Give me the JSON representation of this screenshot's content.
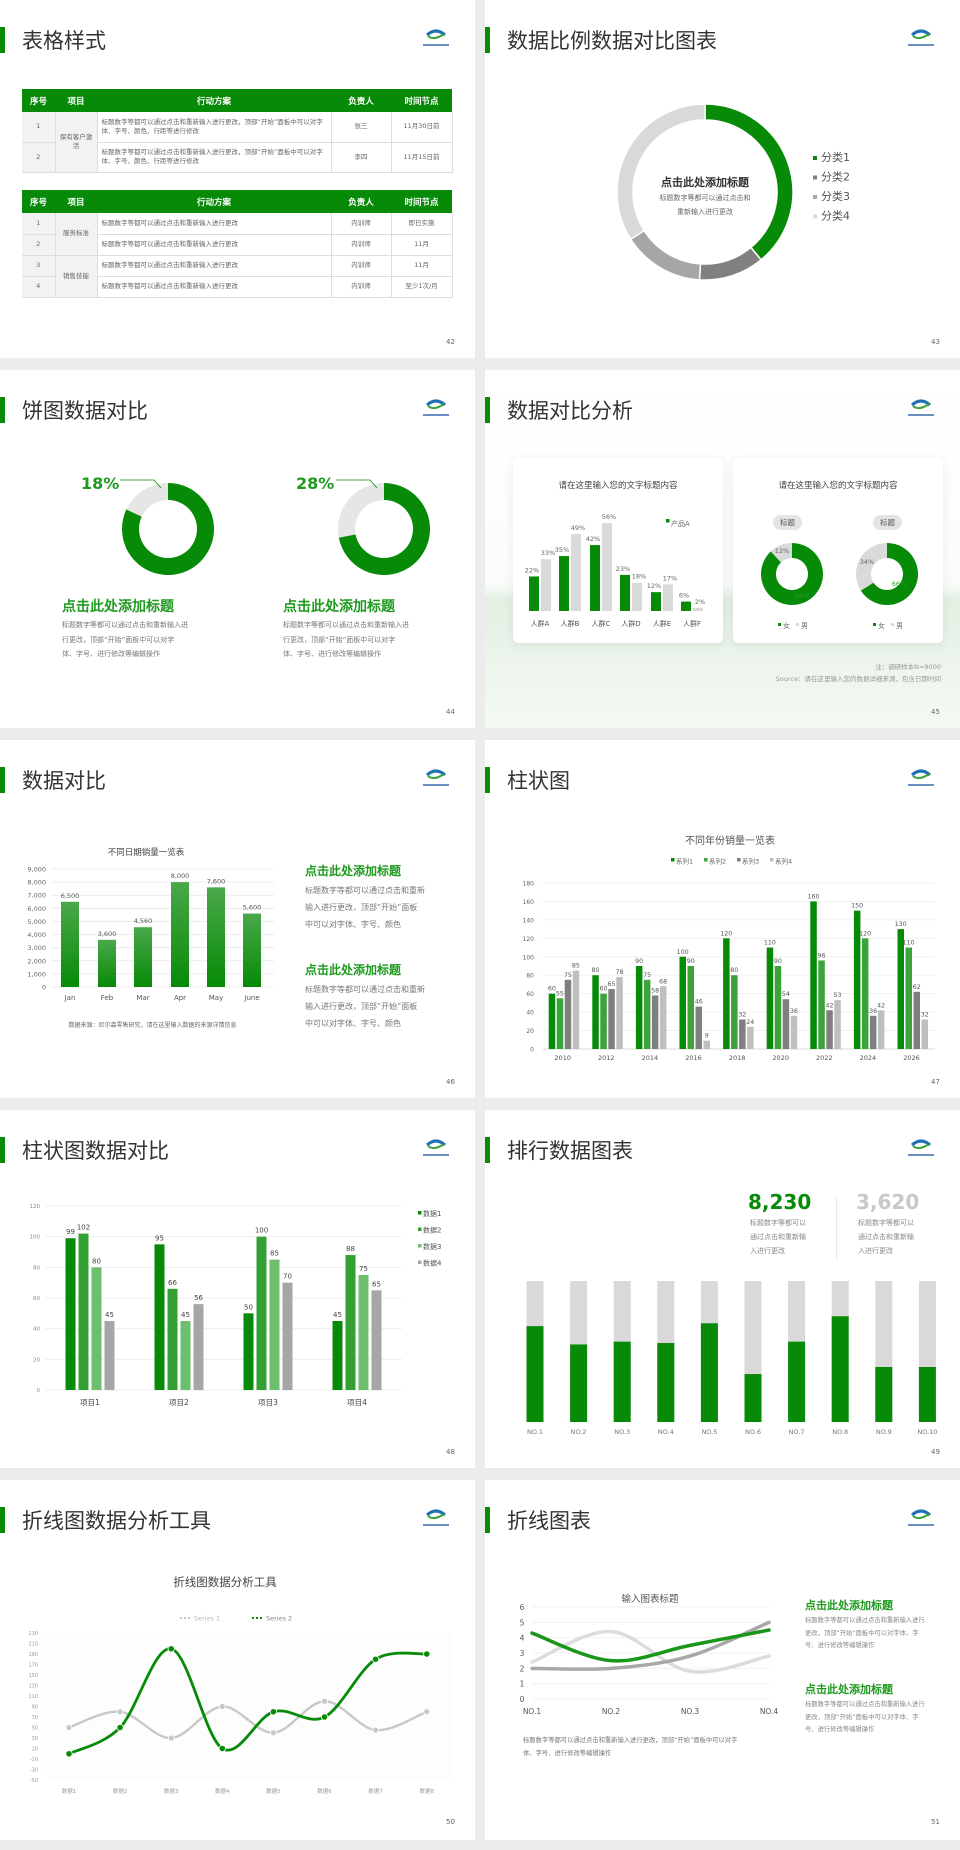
{
  "brand": {
    "green": "#078a07",
    "logo_icon": "eye-swoosh-logo"
  },
  "s42": {
    "title": "表格样式",
    "page": "42",
    "headers": [
      "序号",
      "项目",
      "行动方案",
      "负责人",
      "时间节点"
    ],
    "t1": {
      "group": "保有客户激活",
      "rows": [
        {
          "no": "1",
          "plan": "标题数字等都可以通过点击和重新输入进行更改，顶部“开始”面板中可以对字体、字号、颜色、行距等进行修改",
          "owner": "张三",
          "time": "11月30日前"
        },
        {
          "no": "2",
          "plan": "标题数字等都可以通过点击和重新输入进行更改，顶部“开始”面板中可以对字体、字号、颜色、行距等进行修改",
          "owner": "李四",
          "time": "11月15日前"
        }
      ]
    },
    "t2": {
      "groups": [
        "服务标准",
        "销售技能"
      ],
      "rows": [
        {
          "no": "1",
          "plan": "标题数字等都可以通过点击和重新输入进行更改",
          "owner": "内训师",
          "time": "即日实施"
        },
        {
          "no": "2",
          "plan": "标题数字等都可以通过点击和重新输入进行更改",
          "owner": "内训师",
          "time": "11月"
        },
        {
          "no": "3",
          "plan": "标题数字等都可以通过点击和重新输入进行更改",
          "owner": "内训师",
          "time": "11月"
        },
        {
          "no": "4",
          "plan": "标题数字等都可以通过点击和重新输入进行更改",
          "owner": "内训师",
          "time": "至少1次/月"
        }
      ]
    }
  },
  "s43": {
    "title": "数据比例数据对比图表",
    "page": "43",
    "center_title": "点击此处添加标题",
    "center_lines": [
      "标题数字等都可以通过点击和",
      "重新输入进行更改"
    ]
  },
  "s44": {
    "title": "饼图数据对比",
    "page": "44",
    "items": [
      {
        "label": "18%",
        "heading": "点击此处添加标题",
        "lines": [
          "标题数字等都可以通过点击和重新输入进",
          "行更改，顶部“开始”面板中可以对字",
          "体、字号、进行修改等编辑操作"
        ]
      },
      {
        "label": "28%",
        "heading": "点击此处添加标题",
        "lines": [
          "标题数字等都可以通过点击和重新输入进",
          "行更改，顶部“开始”面板中可以对字",
          "体、字号、进行修改等编辑操作"
        ]
      }
    ]
  },
  "s45": {
    "title": "数据对比分析",
    "page": "45",
    "card1_title": "请在这里输入您的文字标题内容",
    "card2_title": "请在这里输入您的文字标题内容",
    "pills": [
      "标题",
      "标题"
    ],
    "note": "注：调研样本N=9000",
    "source": "Source：请在这里输入您的数据详细来源，包含日期时间"
  },
  "s46": {
    "title": "数据对比",
    "page": "46",
    "chart_title": "不同日期销量一览表",
    "source": "数据来源：尼尔森零售研究，请在这里输入数据的来源详情信息",
    "blocks": [
      {
        "heading": "点击此处添加标题",
        "lines": [
          "标题数字等都可以通过点击和重新",
          "输入进行更改，顶部“开始”面板",
          "中可以对字体、字号、颜色"
        ]
      },
      {
        "heading": "点击此处添加标题",
        "lines": [
          "标题数字等都可以通过点击和重新",
          "输入进行更改，顶部“开始”面板",
          "中可以对字体、字号、颜色"
        ]
      }
    ]
  },
  "s47": {
    "title": "柱状图",
    "page": "47",
    "chart_title": "不同年份销量一览表"
  },
  "s48": {
    "title": "柱状图数据对比",
    "page": "48"
  },
  "s49": {
    "title": "排行数据图表",
    "page": "49",
    "stats": [
      {
        "value": "8,230",
        "lines": [
          "标题数字等都可以",
          "通过点击和重新输",
          "入进行更改"
        ],
        "color": "#078a07"
      },
      {
        "value": "3,620",
        "lines": [
          "标题数字等都可以",
          "通过点击和重新输",
          "入进行更改"
        ],
        "color": "#c8c8c8"
      }
    ]
  },
  "s50": {
    "title": "折线图数据分析工具",
    "page": "50",
    "chart_title": "折线图数据分析工具"
  },
  "s51": {
    "title": "折线图表",
    "page": "51",
    "chart_title": "输入图表标题",
    "body": [
      "标题数字等都可以通过点击和重新输入进行更改，顶部“开始”面板中可以对字",
      "体、字号、进行修改等编辑操作"
    ],
    "blocks": [
      {
        "heading": "点击此处添加标题",
        "lines": [
          "标题数字等都可以通过点击和重新输入进行",
          "更改，顶部“开始”面板中可以对字体、字",
          "号、进行修改等编辑操作"
        ]
      },
      {
        "heading": "点击此处添加标题",
        "lines": [
          "标题数字等都可以通过点击和重新输入进行",
          "更改，顶部“开始”面板中可以对字体、字",
          "号、进行修改等编辑操作"
        ]
      }
    ]
  },
  "chart_data": [
    {
      "type": "pie",
      "donut": true,
      "categories": [
        "分类1",
        "分类2",
        "分类3",
        "分类4"
      ],
      "values": [
        39,
        12,
        15,
        34
      ],
      "colors": [
        "#078a07",
        "#808080",
        "#a6a6a6",
        "#d9d9d9"
      ],
      "legend": "right"
    },
    {
      "type": "pie",
      "donut": true,
      "values": [
        82,
        18
      ],
      "label": "18%",
      "colors": [
        "#078a07",
        "#e6e6e6"
      ]
    },
    {
      "type": "pie",
      "donut": true,
      "values": [
        72,
        28
      ],
      "label": "28%",
      "colors": [
        "#078a07",
        "#e6e6e6"
      ]
    },
    {
      "type": "bar",
      "categories": [
        "人群A",
        "人群B",
        "人群C",
        "人群D",
        "人群E",
        "人群F"
      ],
      "series": [
        {
          "name": "产品A",
          "values": [
            22,
            35,
            42,
            23,
            12,
            6
          ],
          "color": "#078a07"
        },
        {
          "values": [
            33,
            49,
            56,
            18,
            17,
            2
          ],
          "color": "#dadada"
        }
      ],
      "unit": "%",
      "legend": "top-right"
    },
    {
      "type": "pie",
      "donut": true,
      "legend": [
        "女",
        "男"
      ],
      "charts": [
        {
          "values": [
            88,
            12
          ],
          "labels": [
            "88%",
            "12%"
          ]
        },
        {
          "values": [
            66,
            34
          ],
          "labels": [
            "66%",
            "34%"
          ]
        }
      ],
      "colors": [
        "#078a07",
        "#dadada"
      ]
    },
    {
      "type": "bar",
      "title": "不同日期销量一览表",
      "categories": [
        "Jan",
        "Feb",
        "Mar",
        "Apr",
        "May",
        "June"
      ],
      "values": [
        6500,
        3600,
        4560,
        8000,
        7600,
        5600
      ],
      "ylim": [
        0,
        9000
      ],
      "yticks": [
        "0",
        "1,000",
        "2,000",
        "3,000",
        "4,000",
        "5,000",
        "6,000",
        "7,000",
        "8,000",
        "9,000"
      ],
      "labels": [
        "6,500",
        "3,600",
        "4,560",
        "8,000",
        "7,600",
        "5,600"
      ],
      "grid": true
    },
    {
      "type": "bar",
      "title": "不同年份销量一览表",
      "categories": [
        "2010",
        "2012",
        "2014",
        "2016",
        "2018",
        "2020",
        "2022",
        "2024",
        "2026"
      ],
      "series": [
        {
          "name": "系列1",
          "values": [
            60,
            80,
            90,
            100,
            120,
            110,
            160,
            150,
            130
          ],
          "color": "#078a07"
        },
        {
          "name": "系列2",
          "values": [
            55,
            60,
            75,
            90,
            80,
            90,
            96,
            120,
            110
          ],
          "color": "#3aa33a"
        },
        {
          "name": "系列3",
          "values": [
            75,
            65,
            58,
            46,
            32,
            54,
            42,
            36,
            62
          ],
          "color": "#7f7f7f"
        },
        {
          "name": "系列4",
          "values": [
            85,
            78,
            68,
            9,
            24,
            36,
            53,
            42,
            32
          ],
          "color": "#bfbfbf"
        }
      ],
      "ylim": [
        0,
        180
      ],
      "legend": "top",
      "grid": true
    },
    {
      "type": "bar",
      "categories": [
        "项目1",
        "项目2",
        "项目3",
        "项目4"
      ],
      "series": [
        {
          "name": "数据1",
          "values": [
            99,
            95,
            50,
            45
          ],
          "color": "#078a07"
        },
        {
          "name": "数据2",
          "values": [
            102,
            66,
            100,
            88
          ],
          "color": "#34a034"
        },
        {
          "name": "数据3",
          "values": [
            80,
            45,
            85,
            75
          ],
          "color": "#6cbf6c"
        },
        {
          "name": "数据4",
          "values": [
            45,
            56,
            70,
            65
          ],
          "color": "#a6a6a6"
        }
      ],
      "ylim": [
        0,
        120
      ],
      "legend": "right",
      "grid": true
    },
    {
      "type": "bar",
      "stacked_percent": true,
      "categories": [
        "NO.1",
        "NO.2",
        "NO.3",
        "NO.4",
        "NO.5",
        "NO.6",
        "NO.7",
        "NO.8",
        "NO.9",
        "NO.10"
      ],
      "values": [
        68,
        55,
        57,
        56,
        70,
        34,
        57,
        75,
        39,
        39
      ],
      "colors": [
        "#078a07",
        "#d9d9d9"
      ]
    },
    {
      "type": "line",
      "title": "折线图数据分析工具",
      "categories": [
        "数据1",
        "数据2",
        "数据3",
        "数据4",
        "数据5",
        "数据6",
        "数据7",
        "数据8"
      ],
      "series": [
        {
          "name": "Series 1",
          "values": [
            50,
            80,
            30,
            90,
            40,
            100,
            45,
            80
          ],
          "color": "#c8c8c8"
        },
        {
          "name": "Series 2",
          "values": [
            0,
            50,
            200,
            10,
            80,
            70,
            180,
            190
          ],
          "color": "#078a07"
        }
      ],
      "ylim": [
        -50,
        230
      ],
      "yticks": [
        "-50",
        "-30",
        "-10",
        "10",
        "30",
        "50",
        "70",
        "90",
        "110",
        "130",
        "150",
        "170",
        "190",
        "210",
        "230"
      ],
      "smooth": true,
      "legend": "top"
    },
    {
      "type": "line",
      "title": "输入图表标题",
      "categories": [
        "NO.1",
        "NO.2",
        "NO.3",
        "NO.4"
      ],
      "series": [
        {
          "values": [
            4.3,
            2.5,
            3.5,
            4.5
          ],
          "color": "#1a961a"
        },
        {
          "values": [
            2.4,
            4.4,
            1.8,
            2.8
          ],
          "color": "#dcdcdc"
        },
        {
          "values": [
            2.0,
            2.0,
            2.8,
            5.0
          ],
          "color": "#a8a8a8"
        }
      ],
      "ylim": [
        0,
        6
      ],
      "yticks": [
        "0",
        "1",
        "2",
        "3",
        "4",
        "5",
        "6"
      ],
      "smooth": true,
      "grid": true
    }
  ]
}
